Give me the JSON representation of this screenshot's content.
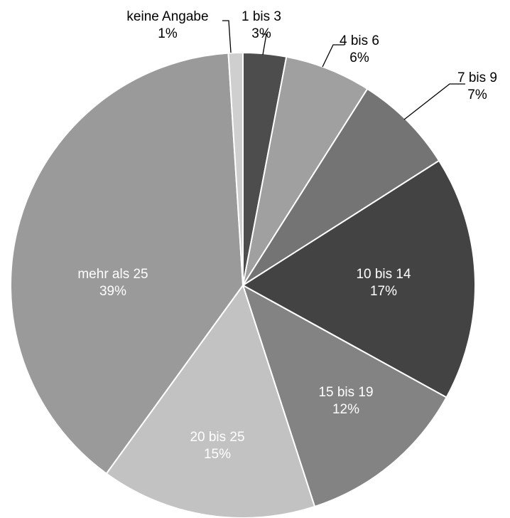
{
  "chart_data": {
    "type": "pie",
    "title": "",
    "start_angle_deg": 0,
    "direction": "clockwise",
    "slices": [
      {
        "label": "1 bis 3",
        "value": 3,
        "display": "3%",
        "color": "#4d4d4d",
        "label_color": "#000000"
      },
      {
        "label": "4 bis 6",
        "value": 6,
        "display": "6%",
        "color": "#a0a0a0",
        "label_color": "#000000"
      },
      {
        "label": "7 bis 9",
        "value": 7,
        "display": "7%",
        "color": "#747474",
        "label_color": "#000000"
      },
      {
        "label": "10 bis 14",
        "value": 17,
        "display": "17%",
        "color": "#434343",
        "label_color": "#ffffff"
      },
      {
        "label": "15 bis 19",
        "value": 12,
        "display": "12%",
        "color": "#838383",
        "label_color": "#ffffff"
      },
      {
        "label": "20 bis 25",
        "value": 15,
        "display": "15%",
        "color": "#c2c2c2",
        "label_color": "#ffffff"
      },
      {
        "label": "mehr als 25",
        "value": 39,
        "display": "39%",
        "color": "#9a9a9a",
        "label_color": "#ffffff"
      },
      {
        "label": "keine Angabe",
        "value": 1,
        "display": "1%",
        "color": "#cfcfcf",
        "label_color": "#000000"
      }
    ],
    "legend": "none",
    "data_labels": "category and percentage"
  }
}
